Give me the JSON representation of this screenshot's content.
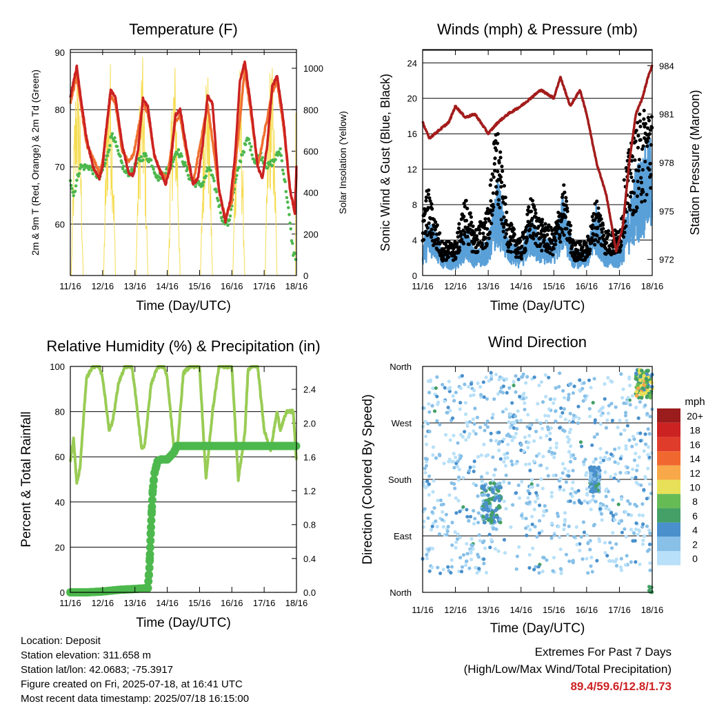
{
  "colors": {
    "temp2m": "#cc2222",
    "temp9m": "#f07030",
    "dewpoint": "#4db84d",
    "solar": "#f5dc50",
    "wind": "#5aa0d8",
    "gust": "#000000",
    "pressure": "#a31c1c",
    "rh": "#99cc55",
    "precip": "#4db84d",
    "extremes": "#cc2222"
  },
  "info": {
    "location": "Location: Deposit",
    "elevation": "Station elevation: 311.658 m",
    "latlon": "Station lat/lon: 42.0683; -75.3917",
    "created": "Figure created on Fri, 2025-07-18, at 16:41 UTC",
    "recent": "Most recent data timestamp: 2025/07/18 16:15:00"
  },
  "extremes": {
    "title": "Extremes For Past 7 Days",
    "subtitle": "(High/Low/Max Wind/Total Precipitation)",
    "values": "89.4/59.6/12.8/1.73"
  },
  "chart_data": [
    {
      "type": "line",
      "title": "Temperature (F)",
      "xlabel": "Time (Day/UTC)",
      "ylabel": "2m & 9m T (Red, Orange) & 2m Td (Green)",
      "ylabel_right": "Solar Insolation (Yellow)",
      "x_ticks": [
        "11/16",
        "12/16",
        "13/16",
        "14/16",
        "15/16",
        "16/16",
        "17/16",
        "18/16"
      ],
      "ylim": [
        51,
        90.5
      ],
      "y_ticks": [
        60,
        70,
        80,
        90
      ],
      "ylim_right": [
        0,
        1090
      ],
      "y_ticks_right": [
        0,
        200,
        400,
        600,
        800,
        1000
      ],
      "grid": "horizontal",
      "series": [
        {
          "name": "2m T",
          "x_days": [
            0,
            0.1,
            0.2,
            0.35,
            0.5,
            0.7,
            0.9,
            1.0,
            1.1,
            1.25,
            1.4,
            1.6,
            1.8,
            1.95,
            2.1,
            2.25,
            2.4,
            2.6,
            2.8,
            2.95,
            3.1,
            3.25,
            3.4,
            3.6,
            3.8,
            3.95,
            4.1,
            4.25,
            4.4,
            4.6,
            4.8,
            4.95,
            5.1,
            5.25,
            5.4,
            5.6,
            5.8,
            5.95,
            6.1,
            6.25,
            6.4,
            6.6,
            6.8,
            6.95,
            7.0
          ],
          "values": [
            82,
            85,
            87.5,
            81,
            75,
            70,
            68,
            70,
            76,
            83.5,
            82,
            74,
            69,
            68.5,
            73,
            82,
            80.5,
            72,
            69,
            67,
            70,
            79,
            80,
            73,
            67,
            68,
            74,
            82.5,
            81,
            66,
            60.5,
            64,
            72,
            85,
            88.5,
            80,
            70,
            68,
            74,
            84,
            86,
            78,
            66,
            62,
            70
          ]
        },
        {
          "name": "9m T",
          "x_days": [
            0,
            0.2,
            0.35,
            0.5,
            0.9,
            1.0,
            1.25,
            1.4,
            1.6,
            1.8,
            1.95,
            2.25,
            2.4,
            2.6,
            2.8,
            3.0,
            3.25,
            3.4,
            3.6,
            3.8,
            4.25,
            4.6,
            4.8,
            5.0,
            5.4,
            5.6,
            5.8,
            6.25,
            6.4,
            6.6,
            6.8,
            6.95,
            7.0
          ],
          "values": [
            81,
            86,
            80,
            74,
            69,
            71,
            82.5,
            81,
            73,
            71,
            72,
            81,
            79.5,
            72,
            69,
            68,
            78,
            79,
            72,
            67,
            81,
            66,
            61,
            64,
            87,
            79,
            70,
            83,
            85,
            77,
            66,
            62,
            69
          ]
        },
        {
          "name": "2m Td",
          "x_days": [
            0,
            0.1,
            0.3,
            0.6,
            0.9,
            1.1,
            1.3,
            1.5,
            1.7,
            1.9,
            2.1,
            2.3,
            2.5,
            2.7,
            2.9,
            3.1,
            3.3,
            3.5,
            3.7,
            3.9,
            4.1,
            4.3,
            4.5,
            4.7,
            4.9,
            5.1,
            5.3,
            5.5,
            5.7,
            5.9,
            6.1,
            6.3,
            6.5,
            6.7,
            6.8,
            6.9,
            7.0
          ],
          "values": [
            68,
            65,
            70,
            70,
            68,
            71,
            76,
            72,
            69,
            69,
            71,
            72,
            71,
            68,
            69,
            70,
            73,
            71,
            68,
            67,
            67,
            70,
            66,
            61,
            60,
            67,
            72,
            75,
            71,
            72,
            70,
            71,
            73,
            65,
            60,
            55,
            54
          ]
        },
        {
          "name": "Solar",
          "x_days": [
            0.05,
            0.12,
            0.2,
            0.28,
            0.35,
            1.05,
            1.12,
            1.2,
            1.28,
            1.35,
            2.05,
            2.12,
            2.2,
            2.28,
            2.35,
            3.05,
            3.12,
            3.2,
            3.28,
            3.35,
            4.05,
            4.12,
            4.2,
            4.28,
            4.35,
            5.05,
            5.12,
            5.2,
            5.28,
            5.35,
            6.05,
            6.12,
            6.2,
            6.28,
            6.35,
            7.0
          ],
          "values": [
            0,
            900,
            400,
            950,
            0,
            0,
            700,
            1000,
            500,
            0,
            0,
            1060,
            300,
            900,
            0,
            0,
            950,
            700,
            1000,
            0,
            0,
            1000,
            600,
            950,
            0,
            0,
            1050,
            800,
            1000,
            0,
            0,
            1000,
            700,
            950,
            0,
            950
          ]
        }
      ]
    },
    {
      "type": "line",
      "title": "Winds (mph) & Pressure (mb)",
      "xlabel": "Time (Day/UTC)",
      "ylabel": "Sonic Wind & Gust (Blue, Black)",
      "ylabel_right": "Station Pressure (Maroon)",
      "x_ticks": [
        "11/16",
        "12/16",
        "13/16",
        "14/16",
        "15/16",
        "16/16",
        "17/16",
        "18/16"
      ],
      "ylim": [
        0,
        25.5
      ],
      "y_ticks": [
        0,
        4,
        8,
        12,
        16,
        20,
        24
      ],
      "ylim_right": [
        971,
        985
      ],
      "y_ticks_right": [
        972,
        975,
        978,
        981,
        984
      ],
      "grid": "horizontal",
      "series": [
        {
          "name": "Wind",
          "x_days": [
            0,
            0.3,
            0.6,
            1.0,
            1.3,
            1.6,
            2.0,
            2.3,
            2.6,
            3.0,
            3.3,
            3.6,
            4.0,
            4.3,
            4.6,
            5.0,
            5.3,
            5.6,
            6.0,
            6.3,
            6.5,
            6.7,
            6.9,
            7.0
          ],
          "values": [
            3,
            5,
            2,
            1.5,
            4,
            2,
            3,
            8,
            3,
            2,
            5,
            3,
            3,
            7,
            2,
            2,
            6,
            2,
            2,
            6,
            9,
            10,
            11,
            12
          ]
        },
        {
          "name": "Gust",
          "x_days": [
            0,
            0.15,
            0.3,
            0.6,
            1.0,
            1.3,
            1.6,
            2.0,
            2.25,
            2.4,
            2.6,
            3.0,
            3.3,
            3.6,
            4.0,
            4.3,
            4.6,
            5.0,
            5.3,
            5.6,
            6.0,
            6.2,
            6.4,
            6.6,
            6.8,
            7.0
          ],
          "values": [
            5,
            8,
            6,
            3,
            3,
            7,
            4,
            6,
            14,
            10,
            5,
            3,
            7,
            5,
            4,
            8,
            3,
            3,
            7,
            4,
            4,
            10,
            12,
            14,
            15,
            16
          ]
        },
        {
          "name": "Pressure",
          "x_days": [
            0,
            0.2,
            0.5,
            0.8,
            1.0,
            1.3,
            1.6,
            2.0,
            2.3,
            2.6,
            3.0,
            3.3,
            3.6,
            4.0,
            4.2,
            4.5,
            4.8,
            5.0,
            5.3,
            5.6,
            5.9,
            6.1,
            6.3,
            6.5,
            6.7,
            6.9,
            7.0
          ],
          "values": [
            980.5,
            979.5,
            980,
            980.5,
            981.5,
            980.8,
            981,
            979.8,
            980.5,
            981,
            981.5,
            982,
            982.5,
            982,
            983.3,
            981.5,
            982.5,
            981,
            978,
            976,
            972.5,
            974,
            978,
            981,
            982,
            983.5,
            984
          ]
        }
      ]
    },
    {
      "type": "line",
      "title": "Relative Humidity (%) & Precipitation (in)",
      "xlabel": "Time (Day/UTC)",
      "ylabel": "Percent & Total Rainfall",
      "x_ticks": [
        "11/16",
        "12/16",
        "13/16",
        "14/16",
        "15/16",
        "16/16",
        "17/16",
        "18/16"
      ],
      "ylim": [
        0,
        100
      ],
      "y_ticks": [
        0,
        20,
        40,
        60,
        80,
        100
      ],
      "ylim_right": [
        0,
        2.67
      ],
      "y_ticks_right": [
        0.0,
        0.4,
        0.8,
        1.2,
        1.6,
        2.0,
        2.4
      ],
      "grid": "horizontal",
      "series": [
        {
          "name": "RH",
          "x_days": [
            0,
            0.1,
            0.2,
            0.3,
            0.5,
            0.7,
            0.9,
            1.0,
            1.2,
            1.3,
            1.5,
            1.7,
            1.9,
            2.0,
            2.2,
            2.3,
            2.5,
            2.7,
            2.9,
            3.0,
            3.2,
            3.3,
            3.5,
            3.7,
            3.9,
            4.0,
            4.2,
            4.4,
            4.6,
            4.8,
            5.0,
            5.2,
            5.4,
            5.5,
            5.6,
            5.8,
            6.0,
            6.2,
            6.4,
            6.5,
            6.7,
            6.9,
            7.0
          ],
          "values": [
            58,
            68,
            48,
            55,
            95,
            100,
            100,
            95,
            72,
            75,
            93,
            100,
            100,
            90,
            64,
            65,
            92,
            100,
            100,
            95,
            65,
            62,
            97,
            100,
            100,
            100,
            50,
            80,
            100,
            100,
            100,
            50,
            70,
            98,
            100,
            100,
            72,
            63,
            80,
            72,
            80,
            80,
            58
          ]
        },
        {
          "name": "Precip",
          "x_days": [
            0,
            0.5,
            1.0,
            1.5,
            2.0,
            2.4,
            2.45,
            2.5,
            2.55,
            2.6,
            2.7,
            2.8,
            3.0,
            3.2,
            3.3,
            5.0,
            6.0,
            7.0
          ],
          "values": [
            0,
            0,
            0.01,
            0.03,
            0.04,
            0.05,
            0.3,
            0.8,
            1.2,
            1.4,
            1.55,
            1.57,
            1.57,
            1.65,
            1.73,
            1.73,
            1.73,
            1.73
          ]
        }
      ]
    },
    {
      "type": "scatter",
      "title": "Wind Direction",
      "xlabel": "Time (Day/UTC)",
      "ylabel": "Direction (Colored By Speed)",
      "x_ticks": [
        "11/16",
        "12/16",
        "13/16",
        "14/16",
        "15/16",
        "16/16",
        "17/16",
        "18/16"
      ],
      "y_ticks": [
        "North",
        "East",
        "South",
        "West",
        "North"
      ],
      "ylim": [
        0,
        360
      ],
      "grid": "horizontal",
      "colorbar": {
        "title": "mph",
        "labels": [
          "20+",
          "18",
          "16",
          "14",
          "12",
          "10",
          "8",
          "6",
          "4",
          "2",
          "0"
        ],
        "colors": [
          "#9b1c1c",
          "#cc2222",
          "#e03c2c",
          "#f06830",
          "#f8a848",
          "#e8e058",
          "#66bb55",
          "#44a066",
          "#4a90cc",
          "#88c0e8",
          "#b8e0f8"
        ]
      },
      "clusters": [
        {
          "x_days": [
            0,
            7
          ],
          "dir_range": [
            30,
            350
          ],
          "speed": 2
        },
        {
          "x_days": [
            1.8,
            2.4
          ],
          "dir_range": [
            110,
            175
          ],
          "speed": 5
        },
        {
          "x_days": [
            5.1,
            5.4
          ],
          "dir_range": [
            160,
            200
          ],
          "speed": 4
        },
        {
          "x_days": [
            6.5,
            7.0
          ],
          "dir_range": [
            310,
            355
          ],
          "speed": 9
        }
      ]
    }
  ]
}
